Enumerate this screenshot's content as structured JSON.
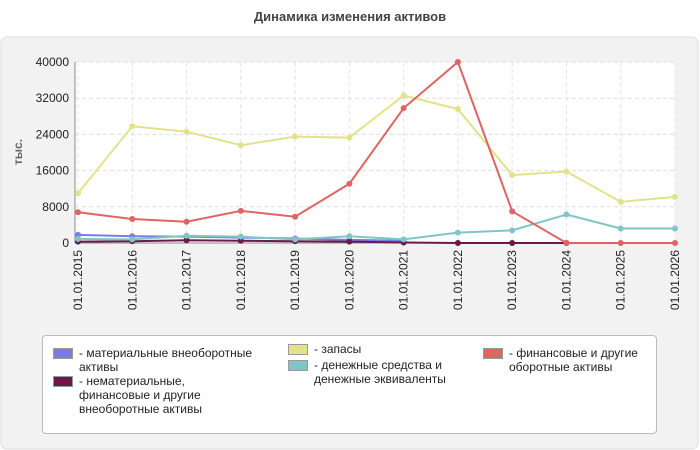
{
  "chart_data": {
    "type": "line",
    "title": "Динамика изменения активов",
    "y_label": "тыс.",
    "categories": [
      "01.01.2015",
      "01.01.2016",
      "01.01.2017",
      "01.01.2018",
      "01.01.2019",
      "01.01.2020",
      "01.01.2021",
      "01.01.2022",
      "01.01.2023",
      "01.01.2024",
      "01.01.2025",
      "01.01.2026"
    ],
    "ylim": [
      0,
      40000
    ],
    "yticks": [
      0,
      8000,
      16000,
      24000,
      32000,
      40000
    ],
    "grid": true,
    "series": [
      {
        "name": "- материальные внеоборотные активы",
        "color": "#7b7be6",
        "values": [
          1800,
          1500,
          1400,
          1200,
          1000,
          700,
          500,
          null,
          null,
          null,
          null,
          null
        ]
      },
      {
        "name": "- нематериальные, финансовые и другие внеоборотные активы",
        "color": "#6b1a4a",
        "values": [
          300,
          400,
          600,
          500,
          400,
          300,
          100,
          0,
          0,
          0,
          null,
          null
        ]
      },
      {
        "name": "- запасы",
        "color": "#e2e28a",
        "values": [
          11000,
          25800,
          24600,
          21600,
          23500,
          23300,
          32600,
          29600,
          15000,
          15800,
          9100,
          10200
        ]
      },
      {
        "name": "- денежные средства и денежные эквиваленты",
        "color": "#80c6c6",
        "values": [
          900,
          800,
          1600,
          1400,
          800,
          1500,
          800,
          2300,
          2800,
          6300,
          3200,
          3200
        ]
      },
      {
        "name": "- финансовые и другие оборотные активы",
        "color": "#e06464",
        "values": [
          6800,
          5300,
          4700,
          7100,
          5800,
          13100,
          29800,
          40000,
          7000,
          0,
          0,
          0
        ]
      }
    ]
  }
}
